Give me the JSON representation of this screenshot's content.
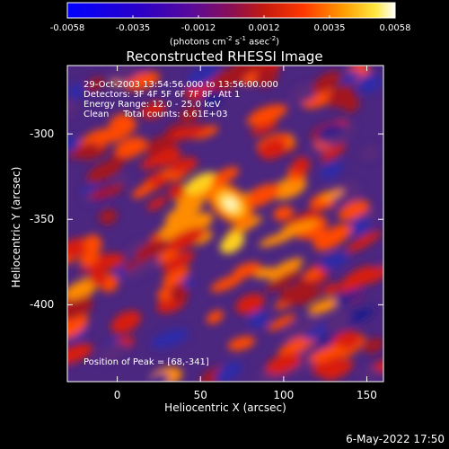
{
  "chart_data": {
    "type": "heatmap",
    "title": "Reconstructed RHESSI Image",
    "xlabel": "Heliocentric X (arcsec)",
    "ylabel": "Heliocentric Y (arcsec)",
    "xlim": [
      -30,
      160
    ],
    "ylim": [
      -445,
      -260
    ],
    "x_ticks": [
      0,
      50,
      100,
      150
    ],
    "y_ticks": [
      -300,
      -350,
      -400
    ],
    "colorbar": {
      "range": [
        -0.0058,
        0.0058
      ],
      "ticks": [
        "-0.0058",
        "-0.0035",
        "-0.0012",
        "0.0012",
        "0.0035",
        "0.0058"
      ],
      "unit_prefix": "(photons cm",
      "unit_exp1": "-2",
      "unit_mid": " s",
      "unit_exp2": "-1",
      "unit_mid2": " asec",
      "unit_exp3": "-2",
      "unit_suffix": ")"
    },
    "annotations": {
      "time": "29-Oct-2003 13:54:56.000 to 13:56:00.000",
      "detectors": "Detectors: 3F 4F 5F 6F 7F 8F, Att 1",
      "energy": "Energy Range: 12.0 - 25.0 keV",
      "clean": "Clean     Total counts: 6.61E+03",
      "peak": "Position of Peak = [68,-341]"
    },
    "peak": [
      68,
      -341
    ]
  },
  "footer_date": "6-May-2022 17:50",
  "colors": {
    "background": "#000000",
    "text": "#ffffff",
    "frame": "#ffffff"
  }
}
